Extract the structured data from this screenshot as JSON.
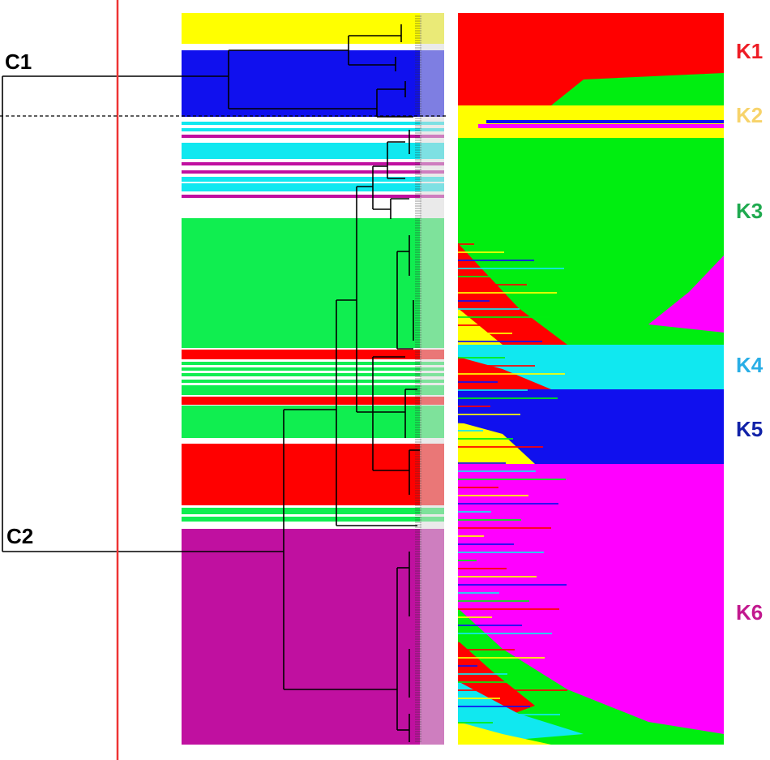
{
  "clusters": [
    {
      "id": "c1",
      "label": "C1"
    },
    {
      "id": "c2",
      "label": "C2"
    }
  ],
  "groups": [
    {
      "id": "k1",
      "label": "K1",
      "color": "#ee1c25"
    },
    {
      "id": "k2",
      "label": "K2",
      "color": "#f7d36a"
    },
    {
      "id": "k3",
      "label": "K3",
      "color": "#1faa4f"
    },
    {
      "id": "k4",
      "label": "K4",
      "color": "#29aee6"
    },
    {
      "id": "k5",
      "label": "K5",
      "color": "#1122a8"
    },
    {
      "id": "k6",
      "label": "K6",
      "color": "#c2188e"
    }
  ],
  "palette": {
    "yellow": "#ffff00",
    "blue": "#1010ee",
    "cyan": "#10e8f0",
    "green": "#10ee50",
    "red": "#ff0000",
    "purple": "#c010a0",
    "bright_green": "#00ee10",
    "magenta": "#ff00ff",
    "cutoff_line": "#ee3333",
    "tree_line": "#000000"
  }
}
